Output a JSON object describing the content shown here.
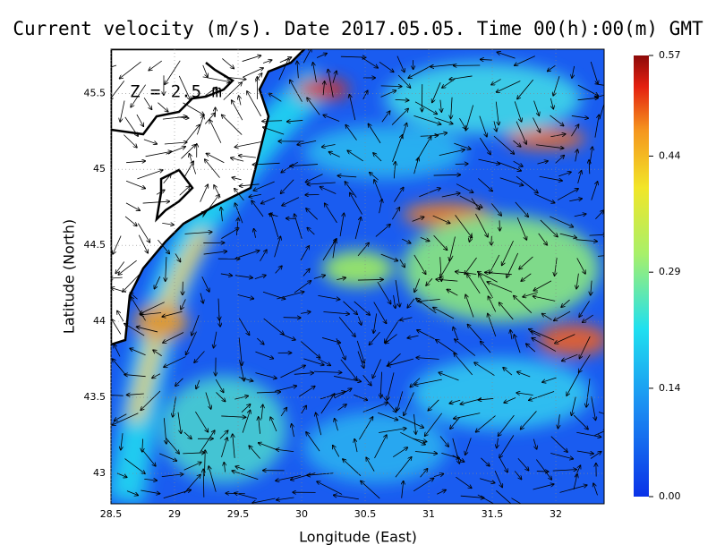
{
  "title": "Current velocity (m/s). Date 2017.05.05. Time 00(h):00(m) GMT",
  "depth_label": "Z = 2.5 m",
  "x_axis": {
    "label": "Longitude (East)",
    "lim": [
      28.5,
      32.38
    ],
    "ticks": [
      28.5,
      29,
      29.5,
      30,
      30.5,
      31,
      31.5,
      32
    ]
  },
  "y_axis": {
    "label": "Latitude (North)",
    "lim": [
      42.8,
      45.79
    ],
    "ticks": [
      43,
      43.5,
      44,
      44.5,
      45,
      45.5
    ]
  },
  "colorbar": {
    "lim": [
      0,
      0.57
    ],
    "ticks": [
      {
        "value": 0,
        "label": "0.00"
      },
      0.14,
      0.29,
      0.44,
      0.57
    ]
  }
}
